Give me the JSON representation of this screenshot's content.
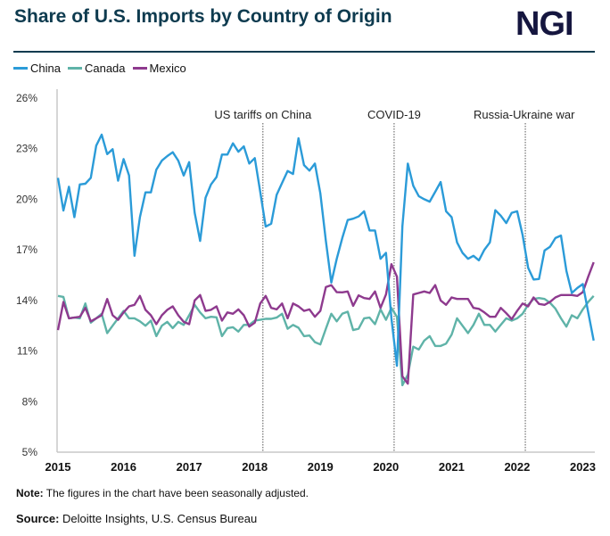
{
  "header": {
    "title": "Share of U.S. Imports by Country of Origin",
    "logo": "NGI"
  },
  "footer": {
    "note_label": "Note:",
    "note_text": "The figures in the chart have been seasonally adjusted.",
    "source_label": "Source:",
    "source_text": "Deloitte Insights, U.S. Census Bureau"
  },
  "chart_data": {
    "type": "line",
    "title": "Share of U.S. Imports by Country of Origin",
    "xlabel": "",
    "ylabel": "",
    "ylim": [
      5,
      26
    ],
    "y_ticks": [
      "26%",
      "23%",
      "20%",
      "17%",
      "14%",
      "11%",
      "8%",
      "5%"
    ],
    "y_tick_values": [
      26,
      23,
      20,
      17,
      14,
      11,
      8,
      5
    ],
    "x_ticks": [
      "2015",
      "2016",
      "2017",
      "2018",
      "2019",
      "2020",
      "2021",
      "2022",
      "2023"
    ],
    "x_start": "2015-01",
    "x_end": "2023-03",
    "grid": false,
    "legend": "top-left",
    "annotations": [
      {
        "label": "US tariffs on China",
        "x": "2018-02"
      },
      {
        "label": "COVID-19",
        "x": "2020-02"
      },
      {
        "label": "Russia-Ukraine war",
        "x": "2022-02"
      }
    ],
    "series": [
      {
        "name": "China",
        "color": "#2b9bd8",
        "values": [
          21.27,
          19.33,
          20.74,
          18.94,
          20.88,
          20.92,
          21.27,
          23.18,
          23.83,
          22.68,
          22.97,
          21.1,
          22.38,
          21.41,
          16.65,
          18.94,
          20.41,
          20.41,
          21.76,
          22.29,
          22.56,
          22.79,
          22.29,
          21.41,
          22.2,
          19.2,
          17.53,
          20.09,
          20.88,
          21.32,
          22.65,
          22.65,
          23.32,
          22.82,
          23.14,
          22.12,
          22.44,
          20.44,
          18.38,
          18.55,
          20.26,
          20.97,
          21.68,
          21.5,
          23.62,
          22.03,
          21.7,
          22.12,
          20.35,
          17.53,
          15.06,
          16.47,
          17.7,
          18.77,
          18.85,
          18.98,
          19.29,
          18.15,
          18.15,
          16.47,
          16.82,
          12.94,
          10.12,
          18.4,
          22.12,
          20.8,
          20.18,
          20.0,
          19.86,
          20.44,
          21.02,
          19.29,
          18.94,
          17.44,
          16.82,
          16.47,
          16.65,
          16.38,
          17.0,
          17.44,
          19.35,
          19.03,
          18.59,
          19.2,
          19.29,
          17.88,
          15.94,
          15.24,
          15.27,
          16.96,
          17.18,
          17.7,
          17.85,
          15.76,
          14.44,
          14.74,
          14.97,
          13.29,
          11.62
        ]
      },
      {
        "name": "Canada",
        "color": "#5fb3a8",
        "values": [
          14.27,
          14.21,
          12.94,
          12.98,
          12.94,
          13.82,
          12.68,
          12.94,
          13.21,
          12.06,
          12.5,
          12.94,
          13.38,
          12.94,
          12.94,
          12.76,
          12.5,
          12.8,
          11.88,
          12.5,
          12.73,
          12.36,
          12.73,
          12.55,
          13.12,
          13.74,
          13.29,
          12.94,
          13.03,
          13.0,
          11.88,
          12.36,
          12.41,
          12.15,
          12.55,
          12.55,
          12.8,
          12.85,
          12.91,
          12.91,
          12.98,
          13.21,
          12.32,
          12.55,
          12.38,
          11.88,
          11.92,
          11.53,
          11.39,
          12.32,
          13.21,
          12.76,
          13.21,
          13.33,
          12.24,
          12.32,
          12.94,
          12.98,
          12.59,
          13.47,
          12.85,
          13.56,
          13.03,
          8.97,
          9.59,
          11.26,
          11.09,
          11.62,
          11.88,
          11.3,
          11.3,
          11.44,
          11.97,
          12.94,
          12.5,
          12.06,
          12.55,
          13.21,
          12.55,
          12.55,
          12.15,
          12.55,
          12.94,
          12.8,
          12.94,
          13.21,
          13.74,
          14.09,
          14.14,
          14.09,
          13.86,
          13.51,
          12.94,
          12.45,
          13.12,
          12.94,
          13.47,
          13.91,
          14.27
        ]
      },
      {
        "name": "Mexico",
        "color": "#8e3a8e",
        "values": [
          12.24,
          13.91,
          12.94,
          12.98,
          13.03,
          13.56,
          12.76,
          12.94,
          13.12,
          14.09,
          13.12,
          12.85,
          13.29,
          13.65,
          13.74,
          14.27,
          13.44,
          13.12,
          12.59,
          13.12,
          13.44,
          13.65,
          13.12,
          12.73,
          12.59,
          14.0,
          14.32,
          13.38,
          13.44,
          13.65,
          12.8,
          13.29,
          13.21,
          13.47,
          13.12,
          12.45,
          12.68,
          13.82,
          14.27,
          13.56,
          13.47,
          13.82,
          12.94,
          13.82,
          13.65,
          13.38,
          13.47,
          13.03,
          13.38,
          14.79,
          14.91,
          14.49,
          14.48,
          14.53,
          13.68,
          14.3,
          14.14,
          14.09,
          14.53,
          13.56,
          14.35,
          16.15,
          15.41,
          9.5,
          9.06,
          14.35,
          14.44,
          14.53,
          14.44,
          14.91,
          14.0,
          13.74,
          14.18,
          14.09,
          14.09,
          14.09,
          13.56,
          13.5,
          13.29,
          13.03,
          13.03,
          13.56,
          13.24,
          12.89,
          13.38,
          13.82,
          13.65,
          14.18,
          13.79,
          13.74,
          13.91,
          14.18,
          14.32,
          14.32,
          14.32,
          14.27,
          14.49,
          15.41,
          16.26
        ]
      }
    ]
  }
}
